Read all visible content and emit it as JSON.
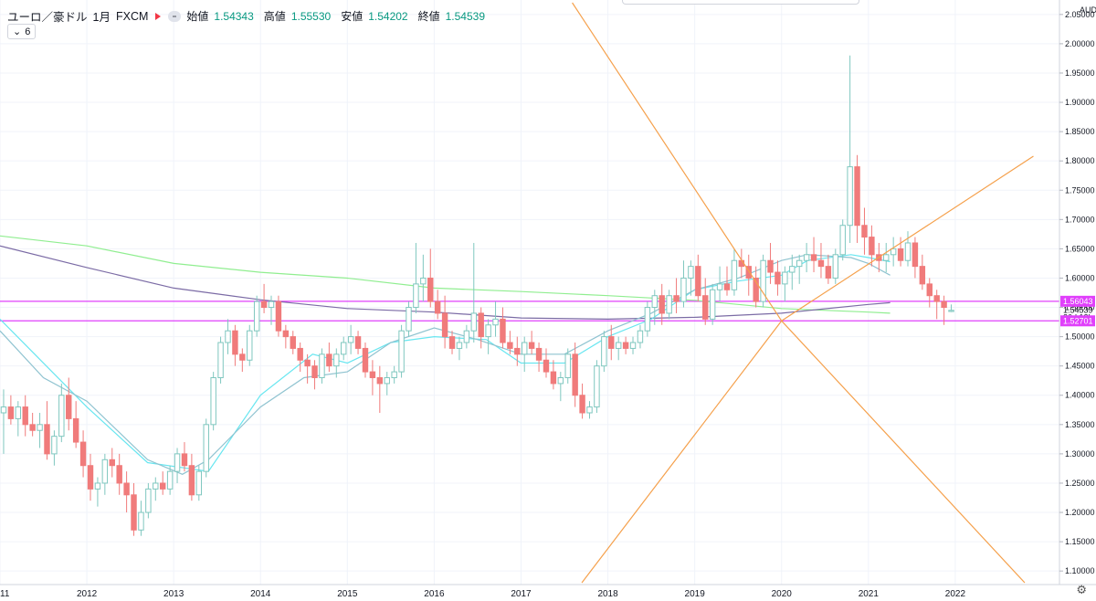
{
  "header": {
    "symbol": "ユーロ／豪ドル",
    "interval": "1月",
    "source": "FXCM",
    "ohlc": [
      {
        "label": "始値",
        "value": "1.54343"
      },
      {
        "label": "高値",
        "value": "1.55530"
      },
      {
        "label": "安値",
        "value": "1.54202"
      },
      {
        "label": "終値",
        "value": "1.54539"
      }
    ],
    "indicator_count": "6"
  },
  "colors": {
    "up": "#7fc7bf",
    "down": "#f07b7b",
    "ma_green": "#90ee90",
    "ma_purple": "#7b6ba5",
    "ma_cyan": "#67e6f0",
    "ma_teal": "#8fc3d0",
    "hline": "#e040fb",
    "trend": "#f5a04b"
  },
  "chart_data": {
    "type": "candlestick",
    "currency": "AUD",
    "ylim": [
      1.08,
      2.07
    ],
    "xlim": [
      2011.0,
      2023.2
    ],
    "y_ticks": [
      "2.05000",
      "2.00000",
      "1.95000",
      "1.90000",
      "1.85000",
      "1.80000",
      "1.75000",
      "1.70000",
      "1.65000",
      "1.60000",
      "1.55000",
      "1.50000",
      "1.45000",
      "1.40000",
      "1.35000",
      "1.30000",
      "1.25000",
      "1.20000",
      "1.15000",
      "1.10000"
    ],
    "x_ticks": [
      "11",
      "2012",
      "2013",
      "2014",
      "2015",
      "2016",
      "2017",
      "2018",
      "2019",
      "2020",
      "2021",
      "2022"
    ],
    "price_labels": [
      {
        "text": "1.56043",
        "value": 1.56043,
        "style": "magenta"
      },
      {
        "text": "1.54539",
        "value": 1.54539,
        "style": "plain"
      },
      {
        "text": "26d 12h",
        "value": 1.5328,
        "style": "plain"
      },
      {
        "text": "1.52701",
        "value": 1.52701,
        "style": "magenta"
      }
    ],
    "hlines": [
      1.56043,
      1.52701
    ],
    "trendlines": [
      {
        "p1": [
          2020.0,
          1.527
        ],
        "p2": [
          2022.9,
          1.808
        ]
      },
      {
        "p1": [
          2020.0,
          1.527
        ],
        "p2": [
          2022.8,
          1.08
        ]
      },
      {
        "p1": [
          2017.7,
          1.08
        ],
        "p2": [
          2020.0,
          1.527
        ]
      },
      {
        "p1": [
          2017.59,
          2.07
        ],
        "p2": [
          2020.0,
          1.527
        ]
      }
    ],
    "candle_x_start": 2011.0,
    "candle_x_step": 0.0833,
    "candles": [
      [
        1.37,
        1.41,
        1.3,
        1.38
      ],
      [
        1.38,
        1.4,
        1.35,
        1.36
      ],
      [
        1.36,
        1.39,
        1.33,
        1.38
      ],
      [
        1.38,
        1.4,
        1.33,
        1.35
      ],
      [
        1.35,
        1.37,
        1.33,
        1.34
      ],
      [
        1.34,
        1.37,
        1.31,
        1.35
      ],
      [
        1.35,
        1.39,
        1.29,
        1.3
      ],
      [
        1.3,
        1.34,
        1.28,
        1.33
      ],
      [
        1.33,
        1.42,
        1.32,
        1.4
      ],
      [
        1.4,
        1.43,
        1.34,
        1.36
      ],
      [
        1.36,
        1.39,
        1.31,
        1.32
      ],
      [
        1.32,
        1.34,
        1.26,
        1.28
      ],
      [
        1.28,
        1.3,
        1.22,
        1.24
      ],
      [
        1.24,
        1.26,
        1.21,
        1.25
      ],
      [
        1.25,
        1.3,
        1.23,
        1.29
      ],
      [
        1.29,
        1.31,
        1.26,
        1.28
      ],
      [
        1.28,
        1.3,
        1.23,
        1.25
      ],
      [
        1.25,
        1.27,
        1.2,
        1.23
      ],
      [
        1.23,
        1.25,
        1.16,
        1.17
      ],
      [
        1.17,
        1.22,
        1.16,
        1.2
      ],
      [
        1.2,
        1.25,
        1.19,
        1.24
      ],
      [
        1.24,
        1.26,
        1.22,
        1.25
      ],
      [
        1.25,
        1.27,
        1.23,
        1.24
      ],
      [
        1.24,
        1.28,
        1.23,
        1.27
      ],
      [
        1.27,
        1.31,
        1.25,
        1.3
      ],
      [
        1.3,
        1.32,
        1.27,
        1.28
      ],
      [
        1.28,
        1.3,
        1.22,
        1.23
      ],
      [
        1.23,
        1.28,
        1.22,
        1.27
      ],
      [
        1.27,
        1.36,
        1.26,
        1.35
      ],
      [
        1.35,
        1.44,
        1.34,
        1.43
      ],
      [
        1.43,
        1.5,
        1.42,
        1.49
      ],
      [
        1.49,
        1.53,
        1.47,
        1.51
      ],
      [
        1.51,
        1.52,
        1.45,
        1.47
      ],
      [
        1.47,
        1.48,
        1.44,
        1.46
      ],
      [
        1.46,
        1.52,
        1.45,
        1.51
      ],
      [
        1.51,
        1.57,
        1.5,
        1.56
      ],
      [
        1.56,
        1.59,
        1.54,
        1.55
      ],
      [
        1.55,
        1.57,
        1.52,
        1.56
      ],
      [
        1.56,
        1.57,
        1.5,
        1.51
      ],
      [
        1.51,
        1.52,
        1.48,
        1.5
      ],
      [
        1.5,
        1.51,
        1.47,
        1.48
      ],
      [
        1.48,
        1.49,
        1.44,
        1.46
      ],
      [
        1.46,
        1.47,
        1.42,
        1.45
      ],
      [
        1.45,
        1.46,
        1.41,
        1.43
      ],
      [
        1.43,
        1.48,
        1.42,
        1.47
      ],
      [
        1.47,
        1.49,
        1.44,
        1.45
      ],
      [
        1.45,
        1.48,
        1.43,
        1.47
      ],
      [
        1.47,
        1.5,
        1.46,
        1.49
      ],
      [
        1.49,
        1.52,
        1.47,
        1.5
      ],
      [
        1.5,
        1.51,
        1.47,
        1.48
      ],
      [
        1.48,
        1.49,
        1.43,
        1.44
      ],
      [
        1.44,
        1.46,
        1.4,
        1.43
      ],
      [
        1.43,
        1.45,
        1.37,
        1.42
      ],
      [
        1.42,
        1.44,
        1.4,
        1.43
      ],
      [
        1.43,
        1.45,
        1.42,
        1.44
      ],
      [
        1.44,
        1.52,
        1.43,
        1.51
      ],
      [
        1.51,
        1.56,
        1.5,
        1.55
      ],
      [
        1.55,
        1.66,
        1.54,
        1.59
      ],
      [
        1.59,
        1.64,
        1.56,
        1.6
      ],
      [
        1.6,
        1.65,
        1.55,
        1.56
      ],
      [
        1.56,
        1.58,
        1.53,
        1.54
      ],
      [
        1.54,
        1.57,
        1.48,
        1.5
      ],
      [
        1.5,
        1.51,
        1.47,
        1.48
      ],
      [
        1.48,
        1.5,
        1.46,
        1.49
      ],
      [
        1.49,
        1.52,
        1.48,
        1.51
      ],
      [
        1.51,
        1.66,
        1.49,
        1.54
      ],
      [
        1.54,
        1.55,
        1.48,
        1.5
      ],
      [
        1.5,
        1.53,
        1.47,
        1.52
      ],
      [
        1.52,
        1.56,
        1.5,
        1.53
      ],
      [
        1.53,
        1.55,
        1.48,
        1.49
      ],
      [
        1.49,
        1.51,
        1.47,
        1.48
      ],
      [
        1.48,
        1.5,
        1.45,
        1.47
      ],
      [
        1.47,
        1.5,
        1.44,
        1.49
      ],
      [
        1.49,
        1.51,
        1.47,
        1.48
      ],
      [
        1.48,
        1.49,
        1.44,
        1.46
      ],
      [
        1.46,
        1.48,
        1.43,
        1.44
      ],
      [
        1.44,
        1.46,
        1.41,
        1.42
      ],
      [
        1.42,
        1.44,
        1.39,
        1.43
      ],
      [
        1.43,
        1.48,
        1.42,
        1.47
      ],
      [
        1.47,
        1.49,
        1.38,
        1.4
      ],
      [
        1.4,
        1.42,
        1.36,
        1.37
      ],
      [
        1.37,
        1.39,
        1.36,
        1.38
      ],
      [
        1.38,
        1.46,
        1.37,
        1.45
      ],
      [
        1.45,
        1.51,
        1.44,
        1.5
      ],
      [
        1.5,
        1.52,
        1.46,
        1.48
      ],
      [
        1.48,
        1.5,
        1.46,
        1.49
      ],
      [
        1.49,
        1.5,
        1.47,
        1.48
      ],
      [
        1.48,
        1.5,
        1.47,
        1.49
      ],
      [
        1.49,
        1.52,
        1.48,
        1.51
      ],
      [
        1.51,
        1.56,
        1.5,
        1.55
      ],
      [
        1.55,
        1.58,
        1.52,
        1.57
      ],
      [
        1.57,
        1.59,
        1.52,
        1.54
      ],
      [
        1.54,
        1.58,
        1.53,
        1.57
      ],
      [
        1.57,
        1.6,
        1.54,
        1.56
      ],
      [
        1.56,
        1.63,
        1.55,
        1.6
      ],
      [
        1.6,
        1.63,
        1.57,
        1.62
      ],
      [
        1.62,
        1.64,
        1.56,
        1.57
      ],
      [
        1.57,
        1.6,
        1.52,
        1.53
      ],
      [
        1.53,
        1.59,
        1.52,
        1.58
      ],
      [
        1.58,
        1.62,
        1.56,
        1.59
      ],
      [
        1.59,
        1.62,
        1.57,
        1.58
      ],
      [
        1.58,
        1.65,
        1.57,
        1.63
      ],
      [
        1.63,
        1.65,
        1.6,
        1.62
      ],
      [
        1.62,
        1.64,
        1.57,
        1.6
      ],
      [
        1.6,
        1.62,
        1.55,
        1.56
      ],
      [
        1.56,
        1.64,
        1.55,
        1.63
      ],
      [
        1.63,
        1.66,
        1.59,
        1.61
      ],
      [
        1.61,
        1.63,
        1.57,
        1.59
      ],
      [
        1.59,
        1.62,
        1.56,
        1.61
      ],
      [
        1.61,
        1.64,
        1.58,
        1.62
      ],
      [
        1.62,
        1.64,
        1.59,
        1.63
      ],
      [
        1.63,
        1.66,
        1.61,
        1.64
      ],
      [
        1.64,
        1.67,
        1.61,
        1.63
      ],
      [
        1.63,
        1.66,
        1.6,
        1.62
      ],
      [
        1.62,
        1.64,
        1.59,
        1.6
      ],
      [
        1.6,
        1.65,
        1.59,
        1.64
      ],
      [
        1.64,
        1.7,
        1.63,
        1.69
      ],
      [
        1.69,
        1.98,
        1.66,
        1.79
      ],
      [
        1.79,
        1.81,
        1.66,
        1.69
      ],
      [
        1.69,
        1.72,
        1.64,
        1.67
      ],
      [
        1.67,
        1.69,
        1.62,
        1.64
      ],
      [
        1.64,
        1.66,
        1.61,
        1.63
      ],
      [
        1.63,
        1.66,
        1.61,
        1.64
      ],
      [
        1.64,
        1.67,
        1.62,
        1.65
      ],
      [
        1.65,
        1.67,
        1.62,
        1.63
      ],
      [
        1.63,
        1.68,
        1.62,
        1.66
      ],
      [
        1.66,
        1.67,
        1.6,
        1.62
      ],
      [
        1.62,
        1.64,
        1.58,
        1.59
      ],
      [
        1.59,
        1.6,
        1.55,
        1.57
      ],
      [
        1.57,
        1.58,
        1.53,
        1.56
      ],
      [
        1.56,
        1.57,
        1.52,
        1.55
      ],
      [
        1.543,
        1.555,
        1.542,
        1.545
      ]
    ],
    "ma_series": [
      {
        "color": "#90ee90",
        "points": [
          [
            2011.0,
            1.672
          ],
          [
            2012.0,
            1.655
          ],
          [
            2013.0,
            1.625
          ],
          [
            2014.0,
            1.61
          ],
          [
            2015.0,
            1.6
          ],
          [
            2016.0,
            1.583
          ],
          [
            2017.0,
            1.577
          ],
          [
            2018.0,
            1.57
          ],
          [
            2019.0,
            1.562
          ],
          [
            2020.0,
            1.548
          ],
          [
            2021.0,
            1.542
          ],
          [
            2021.25,
            1.54
          ]
        ]
      },
      {
        "color": "#7b6ba5",
        "points": [
          [
            2011.0,
            1.655
          ],
          [
            2012.0,
            1.618
          ],
          [
            2013.0,
            1.583
          ],
          [
            2014.0,
            1.563
          ],
          [
            2015.0,
            1.548
          ],
          [
            2016.0,
            1.542
          ],
          [
            2017.0,
            1.532
          ],
          [
            2018.0,
            1.53
          ],
          [
            2019.0,
            1.533
          ],
          [
            2020.0,
            1.54
          ],
          [
            2021.0,
            1.555
          ],
          [
            2021.25,
            1.558
          ]
        ]
      },
      {
        "color": "#67e6f0",
        "points": [
          [
            2011.0,
            1.53
          ],
          [
            2011.4,
            1.47
          ],
          [
            2012.0,
            1.38
          ],
          [
            2012.7,
            1.285
          ],
          [
            2013.4,
            1.27
          ],
          [
            2014.0,
            1.4
          ],
          [
            2014.6,
            1.47
          ],
          [
            2015.0,
            1.455
          ],
          [
            2015.5,
            1.49
          ],
          [
            2016.0,
            1.5
          ],
          [
            2016.6,
            1.495
          ],
          [
            2017.0,
            1.455
          ],
          [
            2017.5,
            1.455
          ],
          [
            2018.0,
            1.5
          ],
          [
            2018.5,
            1.53
          ],
          [
            2019.0,
            1.58
          ],
          [
            2019.5,
            1.595
          ],
          [
            2020.0,
            1.605
          ],
          [
            2020.3,
            1.63
          ],
          [
            2020.8,
            1.64
          ],
          [
            2021.0,
            1.635
          ],
          [
            2021.25,
            1.628
          ]
        ]
      },
      {
        "color": "#8fc3d0",
        "points": [
          [
            2011.0,
            1.51
          ],
          [
            2011.5,
            1.43
          ],
          [
            2012.0,
            1.39
          ],
          [
            2012.7,
            1.29
          ],
          [
            2013.1,
            1.265
          ],
          [
            2013.4,
            1.29
          ],
          [
            2014.0,
            1.38
          ],
          [
            2014.5,
            1.43
          ],
          [
            2015.0,
            1.44
          ],
          [
            2015.5,
            1.49
          ],
          [
            2016.0,
            1.515
          ],
          [
            2016.5,
            1.495
          ],
          [
            2017.0,
            1.47
          ],
          [
            2017.5,
            1.47
          ],
          [
            2018.0,
            1.51
          ],
          [
            2018.5,
            1.54
          ],
          [
            2019.0,
            1.58
          ],
          [
            2019.5,
            1.6
          ],
          [
            2020.0,
            1.63
          ],
          [
            2020.3,
            1.64
          ],
          [
            2020.8,
            1.635
          ],
          [
            2021.0,
            1.625
          ],
          [
            2021.25,
            1.605
          ]
        ]
      }
    ]
  }
}
